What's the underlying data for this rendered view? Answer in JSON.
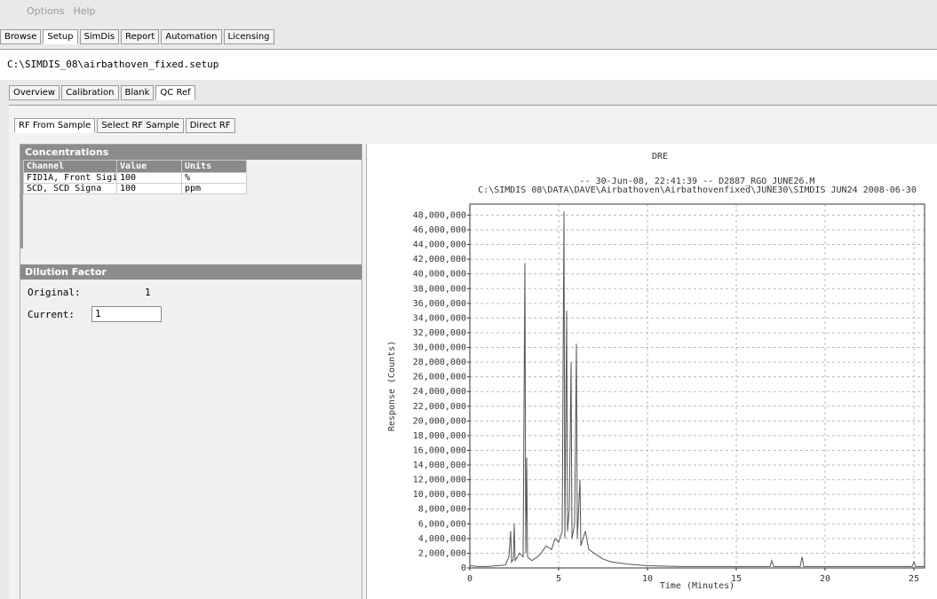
{
  "menu": [
    "Options",
    "Help"
  ],
  "tabs": [
    "Browse",
    "Setup",
    "SimDis",
    "Report",
    "Automation",
    "Licensing"
  ],
  "file_path": "C:\\SIMDIS_08\\airbathoven_fixed.setup",
  "subtabs": [
    "Overview",
    "Calibration",
    "Blank",
    "QC Ref"
  ],
  "rf_tabs": [
    "RF From Sample",
    "Select RF Sample",
    "Direct RF"
  ],
  "concentrations": {
    "title": "Concentrations",
    "columns": [
      "Channel",
      "Value",
      "Units"
    ],
    "rows": [
      [
        "FID1A, Front Sigi",
        "100",
        "%"
      ],
      [
        "SCD, SCD Signa",
        "100",
        "ppm"
      ]
    ]
  },
  "dilution": {
    "title": "Dilution Factor",
    "original_label": "Original:",
    "original_value": "1",
    "current_label": "Current:",
    "current_value": "1"
  },
  "chart_data": {
    "type": "line",
    "title": "DRE",
    "subtitle": [
      "-- 30-Jun-08, 22:41:39 -- D2887_RGO_JUNE26.M",
      "C:\\SIMDIS 08\\DATA\\DAVE\\Airbathoven\\Airbathovenfixed\\JUNE30\\SIMDIS JUN24 2008-06-30"
    ],
    "x_label": "Time (Minutes)",
    "y_label": "Response (Counts)",
    "color": "#555555",
    "grid": true,
    "xlim": [
      0,
      25.6
    ],
    "xticks": [
      0,
      5,
      10,
      15,
      20,
      25
    ],
    "ylim": [
      0,
      49500000
    ],
    "yticks": [
      0,
      {
        "value": 2000000,
        "label": "2,000,000"
      },
      {
        "value": 4000000,
        "label": "4,000,000"
      },
      {
        "value": 6000000,
        "label": "6,000,000"
      },
      {
        "value": 8000000,
        "label": "8,000,000"
      },
      {
        "value": 10000000,
        "label": "10,000,000"
      },
      {
        "value": 12000000,
        "label": "12,000,000"
      },
      {
        "value": 14000000,
        "label": "14,000,000"
      },
      {
        "value": 16000000,
        "label": "16,000,000"
      },
      {
        "value": 18000000,
        "label": "18,000,000"
      },
      {
        "value": 20000000,
        "label": "20,000,000"
      },
      {
        "value": 22000000,
        "label": "22,000,000"
      },
      {
        "value": 24000000,
        "label": "24,000,000"
      },
      {
        "value": 26000000,
        "label": "26,000,000"
      },
      {
        "value": 28000000,
        "label": "28,000,000"
      },
      {
        "value": 30000000,
        "label": "30,000,000"
      },
      {
        "value": 32000000,
        "label": "32,000,000"
      },
      {
        "value": 34000000,
        "label": "34,000,000"
      },
      {
        "value": 36000000,
        "label": "36,000,000"
      },
      {
        "value": 38000000,
        "label": "38,000,000"
      },
      {
        "value": 40000000,
        "label": "40,000,000"
      },
      {
        "value": 42000000,
        "label": "42,000,000"
      },
      {
        "value": 44000000,
        "label": "44,000,000"
      },
      {
        "value": 46000000,
        "label": "46,000,000"
      },
      {
        "value": 48000000,
        "label": "48,000,000"
      }
    ],
    "x": [
      0,
      0.5,
      1,
      1.5,
      2,
      2.2,
      2.3,
      2.35,
      2.45,
      2.5,
      2.55,
      2.8,
      3.0,
      3.1,
      3.15,
      3.2,
      3.25,
      3.5,
      3.8,
      4.0,
      4.3,
      4.6,
      4.8,
      5.0,
      5.2,
      5.3,
      5.35,
      5.45,
      5.5,
      5.6,
      5.7,
      5.75,
      5.9,
      6.0,
      6.05,
      6.2,
      6.25,
      6.5,
      6.7,
      7.0,
      7.5,
      8,
      9,
      10,
      12,
      15,
      16.9,
      17,
      17.1,
      18.6,
      18.7,
      18.8,
      22,
      24.9,
      25,
      25.1,
      25.6
    ],
    "values": [
      300000,
      200000,
      200000,
      300000,
      400000,
      1500000,
      5000000,
      800000,
      1200000,
      6000000,
      1000000,
      2000000,
      1500000,
      41500000,
      2000000,
      15000000,
      1500000,
      1000000,
      1500000,
      2000000,
      3000000,
      2500000,
      4000000,
      3500000,
      5000000,
      48500000,
      4000000,
      35000000,
      5000000,
      8000000,
      28000000,
      4000000,
      6000000,
      30500000,
      4000000,
      12000000,
      3000000,
      5000000,
      2500000,
      2000000,
      1200000,
      800000,
      500000,
      300000,
      200000,
      200000,
      200000,
      1000000,
      200000,
      200000,
      1500000,
      200000,
      200000,
      200000,
      800000,
      200000,
      200000
    ]
  }
}
